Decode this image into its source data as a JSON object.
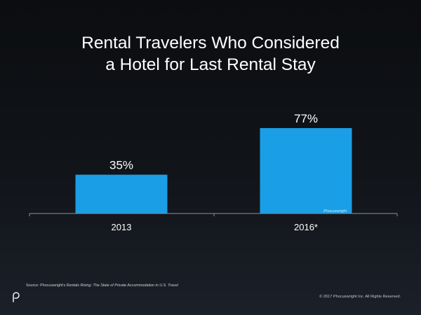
{
  "chart_data": {
    "type": "bar",
    "title_lines": [
      "Rental Travelers Who Considered",
      "a Hotel for Last Rental Stay"
    ],
    "categories": [
      "2013",
      "2016*"
    ],
    "values": [
      35,
      77
    ],
    "value_labels": [
      "35%",
      "77%"
    ],
    "ylim": [
      0,
      100
    ],
    "grid": false,
    "legend": "none",
    "bar_color": "#1a9ee6"
  },
  "footer": {
    "source_prefix": "Source: Phocuswright's ",
    "source_title": "Rentals Rising: The State of Private Accommodation in U.S. Travel",
    "copyright": "© 2017 Phocuswright Inc. All Rights Reserved.",
    "watermark": "Phocuswright"
  },
  "colors": {
    "background": "#0b0d10",
    "text": "#ffffff",
    "axis": "#8a8f96"
  }
}
